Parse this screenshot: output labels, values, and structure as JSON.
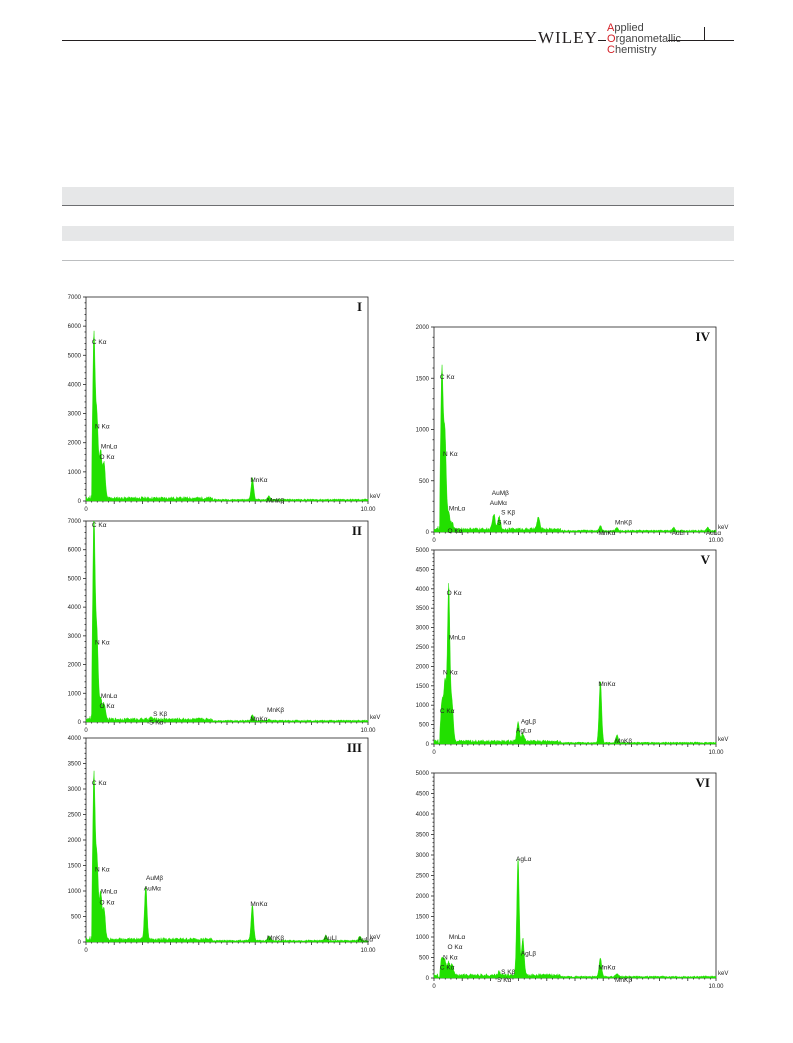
{
  "header": {
    "publisher": "WILEY",
    "journal_lines": [
      {
        "cap": "A",
        "rest": "pplied"
      },
      {
        "cap": "O",
        "rest": "rganometallic"
      },
      {
        "cap": "C",
        "rest": "hemistry"
      }
    ]
  },
  "colors": {
    "spectrum": "#22e000",
    "band": "#e6e7e8",
    "text": "#231f20",
    "accent": "#d42027"
  },
  "chart_data": [
    {
      "type": "area",
      "panel": "I",
      "xlim": [
        0,
        10
      ],
      "ylim": [
        0,
        7000
      ],
      "yticks": [
        0,
        1000,
        2000,
        3000,
        4000,
        5000,
        6000,
        7000
      ],
      "xtick_labels": [
        "0",
        "10.00"
      ],
      "xunit": "keV",
      "peaks": [
        [
          0.28,
          5600
        ],
        [
          0.39,
          2700
        ],
        [
          0.52,
          1600
        ],
        [
          0.64,
          1200
        ],
        [
          5.9,
          750
        ],
        [
          6.49,
          120
        ]
      ],
      "labels": [
        {
          "text": "C Kα",
          "x": 0.28,
          "y": 5600
        },
        {
          "text": "N Kα",
          "x": 0.39,
          "y": 2700
        },
        {
          "text": "MnLα",
          "x": 0.6,
          "y": 2000
        },
        {
          "text": "O Kα",
          "x": 0.55,
          "y": 1650
        },
        {
          "text": "MnKα",
          "x": 5.9,
          "y": 850
        },
        {
          "text": "MnKβ",
          "x": 6.49,
          "y": 150
        }
      ]
    },
    {
      "type": "area",
      "panel": "II",
      "xlim": [
        0,
        10
      ],
      "ylim": [
        0,
        7000
      ],
      "yticks": [
        0,
        1000,
        2000,
        3000,
        4000,
        5000,
        6000,
        7000
      ],
      "xtick_labels": [
        "0",
        "10.00"
      ],
      "xunit": "keV",
      "peaks": [
        [
          0.28,
          7000
        ],
        [
          0.39,
          2800
        ],
        [
          0.52,
          700
        ],
        [
          0.64,
          550
        ],
        [
          2.31,
          60
        ],
        [
          5.9,
          200
        ],
        [
          6.49,
          40
        ]
      ],
      "labels": [
        {
          "text": "C Kα",
          "x": 0.28,
          "y": 7000
        },
        {
          "text": "N Kα",
          "x": 0.39,
          "y": 2900
        },
        {
          "text": "MnLα",
          "x": 0.6,
          "y": 1050
        },
        {
          "text": "O Kα",
          "x": 0.55,
          "y": 700
        },
        {
          "text": "S Kβ",
          "x": 2.45,
          "y": 420
        },
        {
          "text": "S Kα",
          "x": 2.31,
          "y": 120
        },
        {
          "text": "MnKα",
          "x": 5.9,
          "y": 250
        },
        {
          "text": "MnKβ",
          "x": 6.49,
          "y": 550
        }
      ]
    },
    {
      "type": "area",
      "panel": "III",
      "xlim": [
        0,
        10
      ],
      "ylim": [
        0,
        4000
      ],
      "yticks": [
        0,
        500,
        1000,
        1500,
        2000,
        2500,
        3000,
        3500,
        4000
      ],
      "xtick_labels": [
        "0",
        "10.00"
      ],
      "xunit": "keV",
      "peaks": [
        [
          0.28,
          3200
        ],
        [
          0.39,
          1500
        ],
        [
          0.52,
          900
        ],
        [
          0.64,
          600
        ],
        [
          2.12,
          1050
        ],
        [
          5.9,
          700
        ],
        [
          6.49,
          100
        ],
        [
          8.5,
          100
        ],
        [
          9.71,
          80
        ]
      ],
      "labels": [
        {
          "text": "C Kα",
          "x": 0.28,
          "y": 3200
        },
        {
          "text": "N Kα",
          "x": 0.39,
          "y": 1500
        },
        {
          "text": "MnLα",
          "x": 0.6,
          "y": 1070
        },
        {
          "text": "O Kα",
          "x": 0.55,
          "y": 850
        },
        {
          "text": "AuMβ",
          "x": 2.2,
          "y": 1330
        },
        {
          "text": "AuMα",
          "x": 2.12,
          "y": 1130
        },
        {
          "text": "MnKα",
          "x": 5.9,
          "y": 820
        },
        {
          "text": "MnKβ",
          "x": 6.49,
          "y": 160
        },
        {
          "text": "AuLl",
          "x": 8.5,
          "y": 160
        },
        {
          "text": "AuLα",
          "x": 9.71,
          "y": 130
        }
      ]
    },
    {
      "type": "area",
      "panel": "IV",
      "xlim": [
        0,
        10
      ],
      "ylim": [
        0,
        2000
      ],
      "yticks": [
        0,
        500,
        1000,
        1500,
        2000
      ],
      "xtick_labels": [
        "0",
        "10.00"
      ],
      "xunit": "keV",
      "peaks": [
        [
          0.28,
          1550
        ],
        [
          0.39,
          900
        ],
        [
          0.52,
          150
        ],
        [
          0.64,
          60
        ],
        [
          2.12,
          150
        ],
        [
          2.31,
          120
        ],
        [
          3.7,
          120
        ],
        [
          5.9,
          50
        ],
        [
          6.49,
          30
        ],
        [
          8.5,
          30
        ],
        [
          9.71,
          30
        ]
      ],
      "labels": [
        {
          "text": "C Kα",
          "x": 0.28,
          "y": 1550
        },
        {
          "text": "N Kα",
          "x": 0.39,
          "y": 800
        },
        {
          "text": "MnLα",
          "x": 0.6,
          "y": 270
        },
        {
          "text": "O Kα",
          "x": 0.55,
          "y": 50
        },
        {
          "text": "AuMβ",
          "x": 2.12,
          "y": 420
        },
        {
          "text": "AuMα",
          "x": 2.05,
          "y": 320
        },
        {
          "text": "S Kβ",
          "x": 2.45,
          "y": 230
        },
        {
          "text": "S Kα",
          "x": 2.31,
          "y": 130
        },
        {
          "text": "MnKβ",
          "x": 6.49,
          "y": 130
        },
        {
          "text": "MnKα",
          "x": 5.9,
          "y": 30
        },
        {
          "text": "AuLl",
          "x": 8.5,
          "y": 30
        },
        {
          "text": "AuLα",
          "x": 9.71,
          "y": 30
        }
      ]
    },
    {
      "type": "area",
      "panel": "V",
      "xlim": [
        0,
        10
      ],
      "ylim": [
        0,
        5000
      ],
      "yticks": [
        0,
        500,
        1000,
        1500,
        2000,
        2500,
        3000,
        3500,
        4000,
        4500,
        5000
      ],
      "xtick_labels": [
        "0",
        "10.00"
      ],
      "xunit": "keV",
      "peaks": [
        [
          0.28,
          1000
        ],
        [
          0.39,
          1500
        ],
        [
          0.52,
          4000
        ],
        [
          0.64,
          950
        ],
        [
          2.98,
          500
        ],
        [
          3.15,
          200
        ],
        [
          5.9,
          1600
        ],
        [
          6.49,
          200
        ]
      ],
      "labels": [
        {
          "text": "O Kα",
          "x": 0.52,
          "y": 4000
        },
        {
          "text": "MnLα",
          "x": 0.6,
          "y": 2850
        },
        {
          "text": "N Kα",
          "x": 0.39,
          "y": 1950
        },
        {
          "text": "C Kα",
          "x": 0.28,
          "y": 950
        },
        {
          "text": "AgLβ",
          "x": 3.15,
          "y": 680
        },
        {
          "text": "AgLα",
          "x": 2.98,
          "y": 450
        },
        {
          "text": "MnKα",
          "x": 5.9,
          "y": 1650
        },
        {
          "text": "MnKβ",
          "x": 6.49,
          "y": 180
        }
      ]
    },
    {
      "type": "area",
      "panel": "VI",
      "xlim": [
        0,
        10
      ],
      "ylim": [
        0,
        5000
      ],
      "yticks": [
        0,
        500,
        1000,
        1500,
        2000,
        2500,
        3000,
        3500,
        4000,
        4500,
        5000
      ],
      "xtick_labels": [
        "0",
        "10.00"
      ],
      "xunit": "keV",
      "peaks": [
        [
          0.28,
          450
        ],
        [
          0.39,
          350
        ],
        [
          0.52,
          300
        ],
        [
          0.64,
          280
        ],
        [
          2.31,
          80
        ],
        [
          2.98,
          2850
        ],
        [
          3.15,
          900
        ],
        [
          5.9,
          450
        ],
        [
          6.49,
          80
        ]
      ],
      "labels": [
        {
          "text": "AgLα",
          "x": 2.98,
          "y": 3000
        },
        {
          "text": "MnLα",
          "x": 0.6,
          "y": 1100
        },
        {
          "text": "O Kα",
          "x": 0.55,
          "y": 850
        },
        {
          "text": "N Kα",
          "x": 0.39,
          "y": 600
        },
        {
          "text": "C Kα",
          "x": 0.28,
          "y": 350
        },
        {
          "text": "AgLβ",
          "x": 3.15,
          "y": 700
        },
        {
          "text": "S Kβ",
          "x": 2.45,
          "y": 250
        },
        {
          "text": "S Kα",
          "x": 2.31,
          "y": 50
        },
        {
          "text": "MnKα",
          "x": 5.9,
          "y": 350
        },
        {
          "text": "MnKβ",
          "x": 6.49,
          "y": 50
        }
      ]
    }
  ]
}
